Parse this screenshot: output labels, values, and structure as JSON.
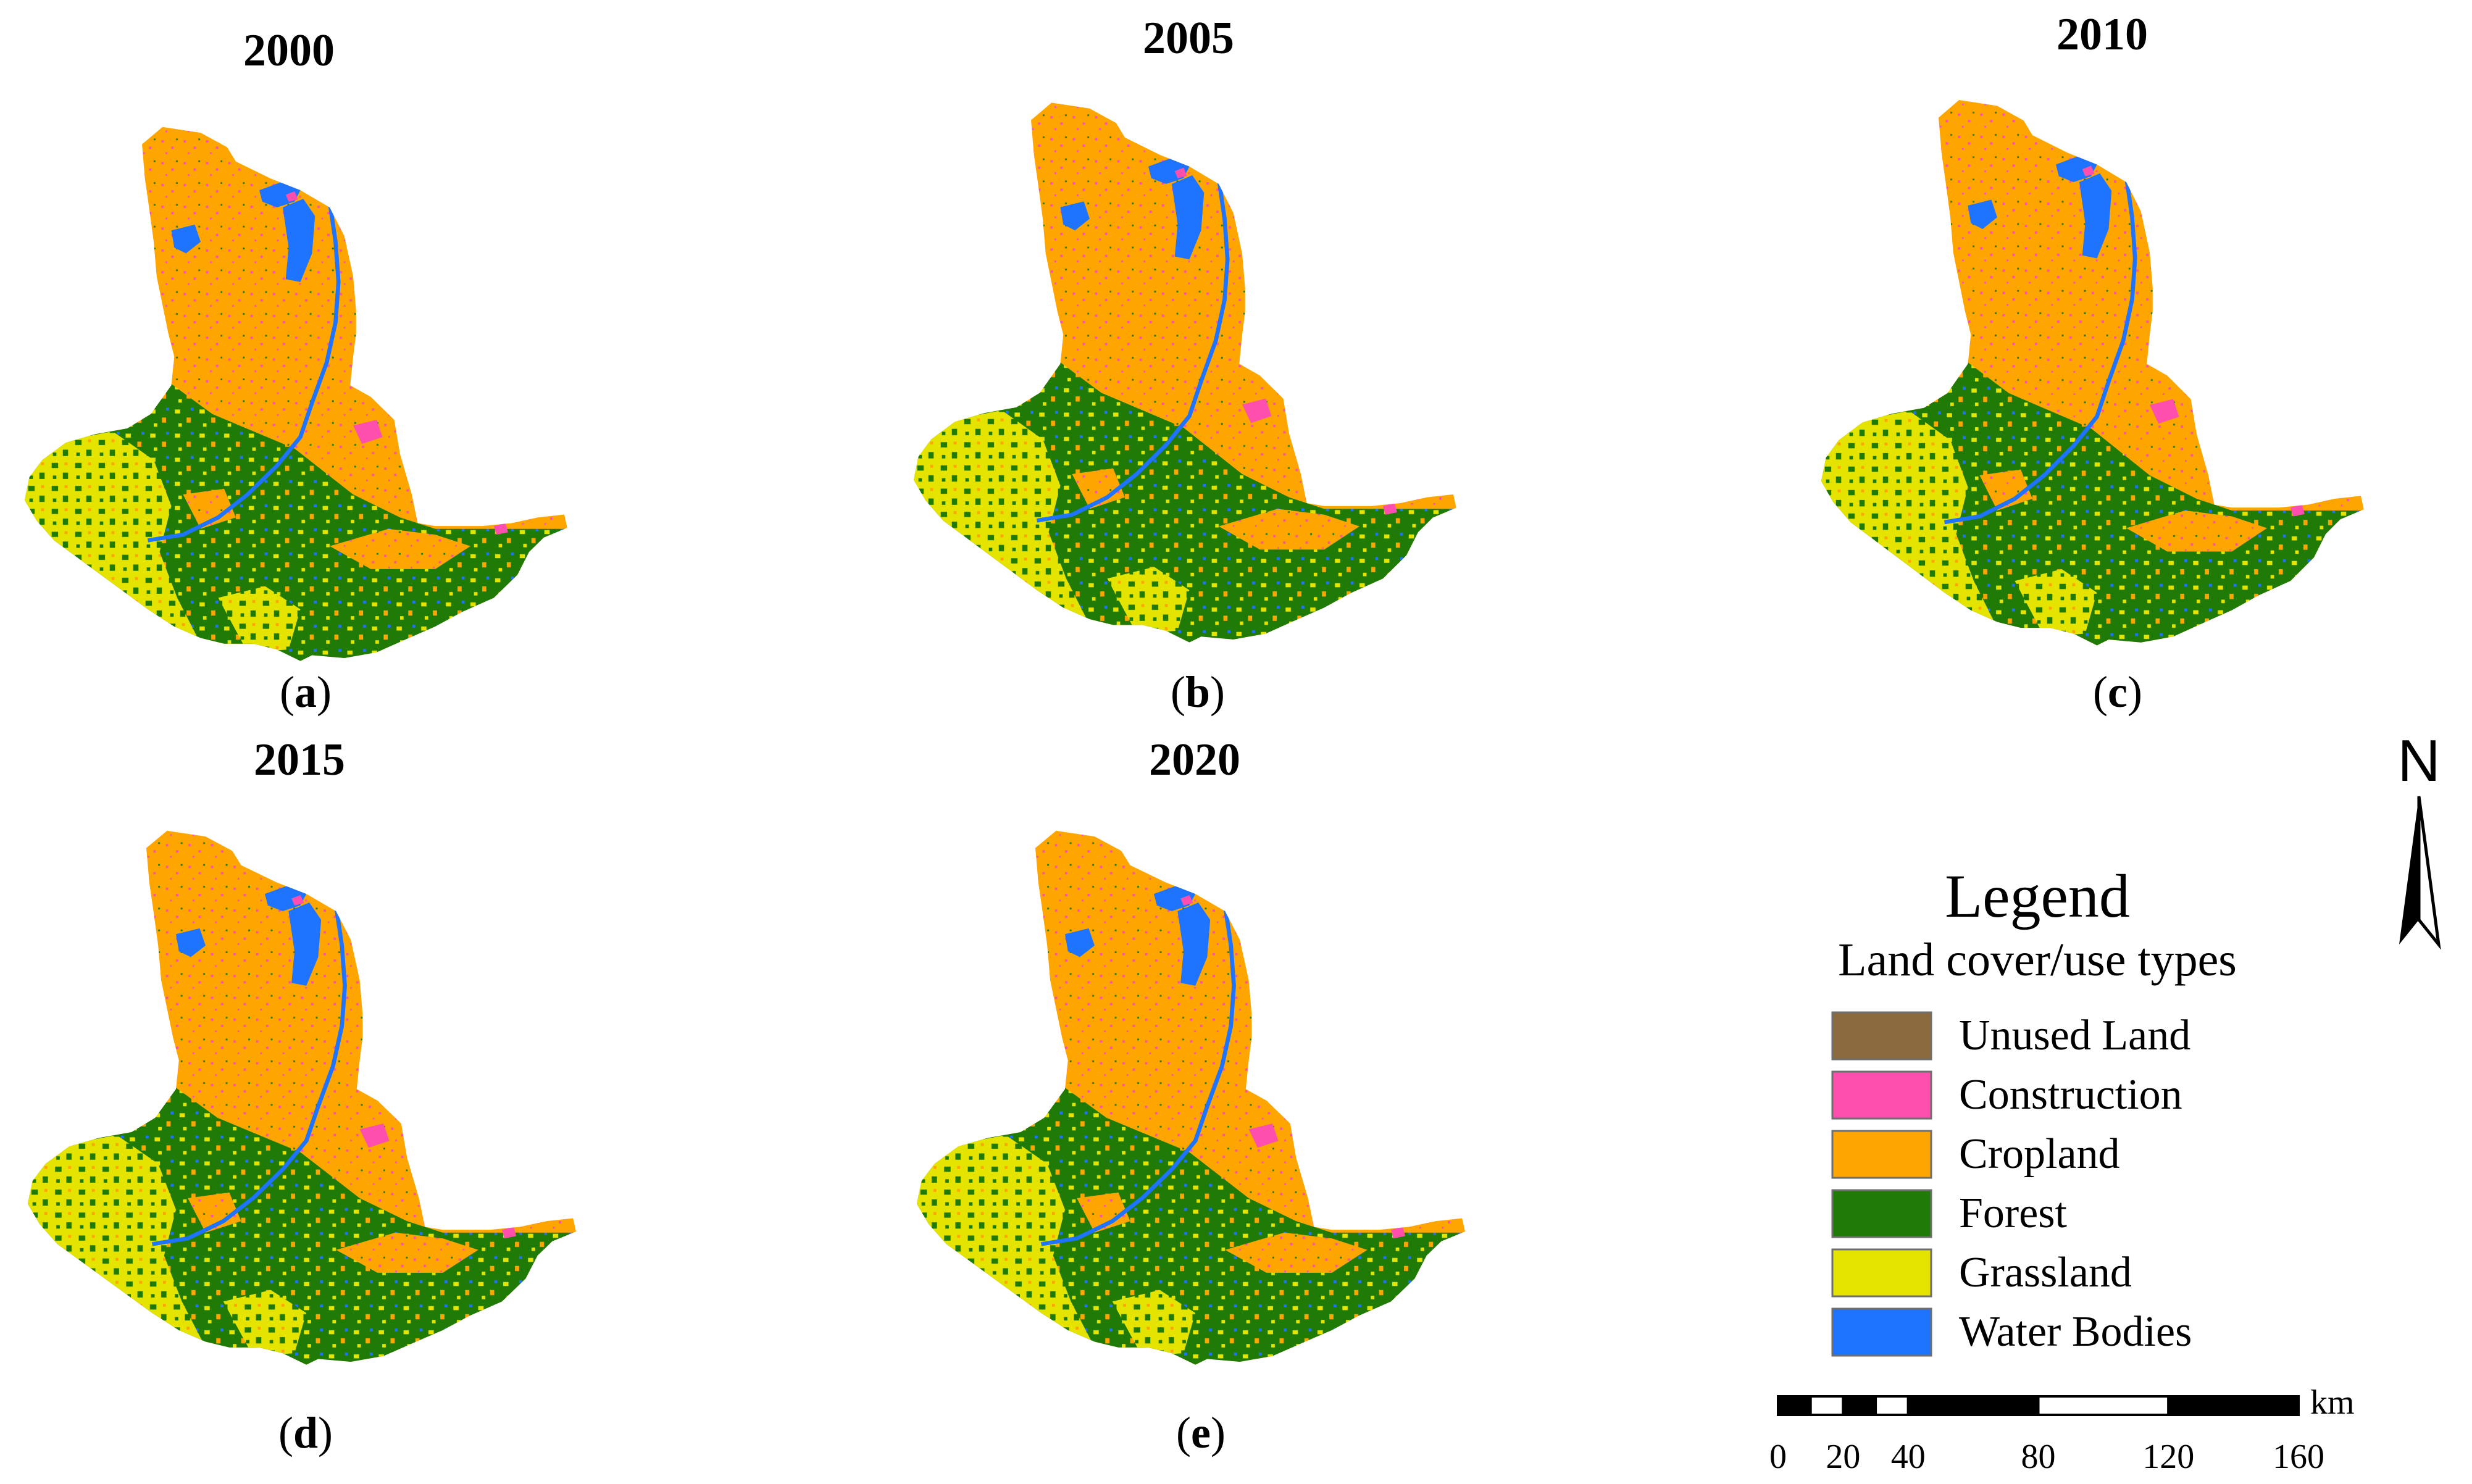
{
  "panels": [
    {
      "id": "a",
      "year": "2000",
      "label": "a"
    },
    {
      "id": "b",
      "year": "2005",
      "label": "b"
    },
    {
      "id": "c",
      "year": "2010",
      "label": "c"
    },
    {
      "id": "d",
      "year": "2015",
      "label": "d"
    },
    {
      "id": "e",
      "year": "2020",
      "label": "e"
    }
  ],
  "legend": {
    "title": "Legend",
    "subtitle": "Land cover/use types",
    "items": [
      {
        "label": "Unused Land",
        "color": "#8b6b3d"
      },
      {
        "label": "Construction",
        "color": "#ff4fae"
      },
      {
        "label": "Cropland",
        "color": "#ffa500"
      },
      {
        "label": "Forest",
        "color": "#1f7a06"
      },
      {
        "label": "Grassland",
        "color": "#e5e400"
      },
      {
        "label": "Water Bodies",
        "color": "#1e73ff"
      }
    ]
  },
  "north_arrow": {
    "label": "N"
  },
  "scale_bar": {
    "unit": "km",
    "ticks": [
      "0",
      "20",
      "40",
      "80",
      "120",
      "160"
    ]
  }
}
